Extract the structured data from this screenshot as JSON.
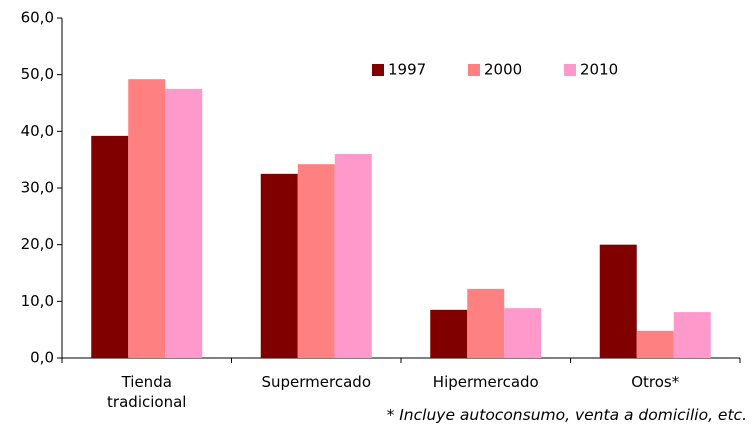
{
  "chart_data": {
    "type": "bar",
    "categories": [
      "Tienda tradicional",
      "Supermercado",
      "Hipermercado",
      "Otros*"
    ],
    "series": [
      {
        "name": "1997",
        "color": "#800000",
        "values": [
          39.2,
          32.5,
          8.5,
          20.0
        ]
      },
      {
        "name": "2000",
        "color": "#ff8080",
        "values": [
          49.2,
          34.2,
          12.2,
          4.8
        ]
      },
      {
        "name": "2010",
        "color": "#ff99cc",
        "values": [
          47.5,
          36.0,
          8.8,
          8.1
        ]
      }
    ],
    "ylim": [
      0,
      60
    ],
    "yticks": [
      {
        "value": 0,
        "label": "0,0"
      },
      {
        "value": 10,
        "label": "10,0"
      },
      {
        "value": 20,
        "label": "20,0"
      },
      {
        "value": 30,
        "label": "30,0"
      },
      {
        "value": 40,
        "label": "40,0"
      },
      {
        "value": 50,
        "label": "50,0"
      },
      {
        "value": 60,
        "label": "60,0"
      }
    ],
    "annotation": "* Incluye autoconsumo, venta a domicilio, etc.",
    "grid": false
  }
}
